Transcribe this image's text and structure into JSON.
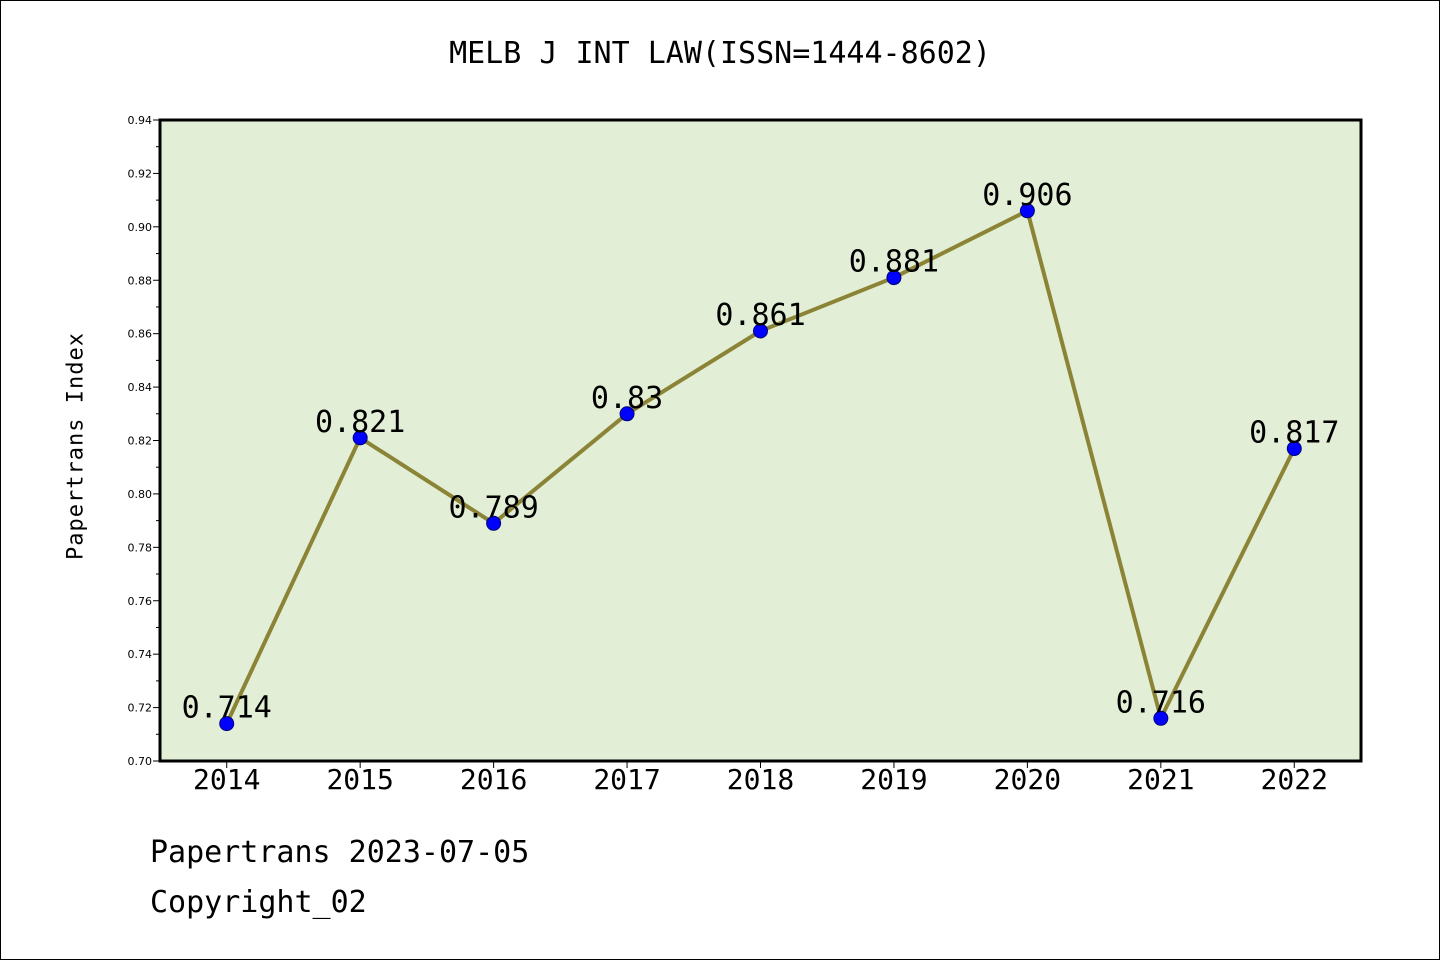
{
  "chart_data": {
    "type": "line",
    "title": "MELB J INT LAW(ISSN=1444-8602)",
    "xlabel": "",
    "ylabel": "Papertrans Index",
    "categories": [
      "2014",
      "2015",
      "2016",
      "2017",
      "2018",
      "2019",
      "2020",
      "2021",
      "2022"
    ],
    "series": [
      {
        "values": [
          0.714,
          0.821,
          0.789,
          0.83,
          0.861,
          0.881,
          0.906,
          0.716,
          0.817
        ],
        "point_labels": [
          "0.714",
          "0.821",
          "0.789",
          "0.83",
          "0.861",
          "0.881",
          "0.906",
          "0.716",
          "0.817"
        ]
      }
    ],
    "ylim": [
      0.7,
      0.94
    ],
    "yticks": [
      "0.70",
      "0.72",
      "0.74",
      "0.76",
      "0.78",
      "0.80",
      "0.82",
      "0.84",
      "0.86",
      "0.88",
      "0.90",
      "0.92",
      "0.94"
    ],
    "grid": false,
    "colors": {
      "plot_background": "#e2efd6",
      "line": "#8b8436",
      "marker": "#0000ff",
      "axis": "#000000"
    }
  },
  "footer": {
    "date_text": "Papertrans 2023-07-05",
    "copyright_text": "Copyright_02"
  }
}
